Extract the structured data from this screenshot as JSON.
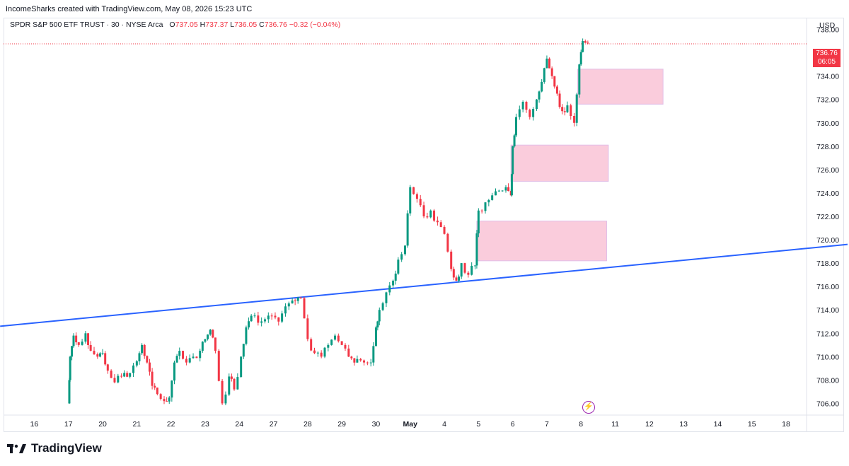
{
  "credit": "IncomeSharks created with TradingView.com, May 08, 2026 15:23 UTC",
  "legend": {
    "symbol": "SPDR S&P 500 ETF TRUST · 30 · NYSE Arca",
    "open_label": "O",
    "open": "737.05",
    "high_label": "H",
    "high": "737.37",
    "low_label": "L",
    "low": "736.05",
    "close_label": "C",
    "close": "736.76",
    "change": "−0.32 (−0.04%)"
  },
  "currency": "USD",
  "last_price": {
    "price": "736.76",
    "countdown": "06:05"
  },
  "brand": "TradingView",
  "colors": {
    "up": "#089981",
    "down": "#f23645",
    "trendline": "#2962ff",
    "zone": "#f8bbd0",
    "zone_border": "#e1bee7"
  },
  "chart_data": {
    "type": "candlestick",
    "interval": "30",
    "y_axis": {
      "min": 705,
      "max": 739,
      "ticks": [
        "706.00",
        "708.00",
        "710.00",
        "712.00",
        "714.00",
        "716.00",
        "718.00",
        "720.00",
        "722.00",
        "724.00",
        "726.00",
        "728.00",
        "730.00",
        "732.00",
        "734.00",
        "736.00",
        "738.00"
      ]
    },
    "x_axis": {
      "min": 15.2,
      "max": 18.6,
      "ticks": [
        {
          "x": 16,
          "label": "16"
        },
        {
          "x": 17,
          "label": "17"
        },
        {
          "x": 18,
          "label": "20"
        },
        {
          "x": 19,
          "label": "21"
        },
        {
          "x": 20,
          "label": "22"
        },
        {
          "x": 21,
          "label": "23"
        },
        {
          "x": 22,
          "label": "24"
        },
        {
          "x": 23,
          "label": "27"
        },
        {
          "x": 24,
          "label": "28"
        },
        {
          "x": 25,
          "label": "29"
        },
        {
          "x": 26,
          "label": "30"
        },
        {
          "x": 27,
          "label": "May",
          "bold": true
        },
        {
          "x": 28,
          "label": "4"
        },
        {
          "x": 29,
          "label": "5"
        },
        {
          "x": 30,
          "label": "6"
        },
        {
          "x": 31,
          "label": "7"
        },
        {
          "x": 32,
          "label": "8"
        },
        {
          "x": 33,
          "label": "11"
        },
        {
          "x": 34,
          "label": "12"
        },
        {
          "x": 35,
          "label": "13"
        },
        {
          "x": 36,
          "label": "14"
        },
        {
          "x": 37,
          "label": "15"
        },
        {
          "x": 38,
          "label": "18"
        }
      ]
    },
    "closes": [
      {
        "x": 17.0,
        "c": 706.0
      },
      {
        "x": 17.05,
        "c": 710.0
      },
      {
        "x": 17.15,
        "c": 711.8
      },
      {
        "x": 17.3,
        "c": 711.0
      },
      {
        "x": 17.5,
        "c": 712.0
      },
      {
        "x": 17.65,
        "c": 710.5
      },
      {
        "x": 17.85,
        "c": 710.0
      },
      {
        "x": 18.0,
        "c": 710.3
      },
      {
        "x": 18.15,
        "c": 708.8
      },
      {
        "x": 18.35,
        "c": 707.8
      },
      {
        "x": 18.55,
        "c": 708.3
      },
      {
        "x": 18.8,
        "c": 708.6
      },
      {
        "x": 19.0,
        "c": 709.6
      },
      {
        "x": 19.15,
        "c": 711.0
      },
      {
        "x": 19.3,
        "c": 709.5
      },
      {
        "x": 19.45,
        "c": 707.5
      },
      {
        "x": 19.6,
        "c": 706.8
      },
      {
        "x": 19.8,
        "c": 706.2
      },
      {
        "x": 19.95,
        "c": 706.5
      },
      {
        "x": 20.1,
        "c": 709.5
      },
      {
        "x": 20.25,
        "c": 710.5
      },
      {
        "x": 20.45,
        "c": 709.5
      },
      {
        "x": 20.65,
        "c": 710.0
      },
      {
        "x": 20.85,
        "c": 710.5
      },
      {
        "x": 21.0,
        "c": 711.5
      },
      {
        "x": 21.15,
        "c": 712.3
      },
      {
        "x": 21.3,
        "c": 710.5
      },
      {
        "x": 21.5,
        "c": 706.0
      },
      {
        "x": 21.7,
        "c": 708.3
      },
      {
        "x": 21.85,
        "c": 707.2
      },
      {
        "x": 22.05,
        "c": 710.0
      },
      {
        "x": 22.2,
        "c": 712.5
      },
      {
        "x": 22.35,
        "c": 713.5
      },
      {
        "x": 22.55,
        "c": 712.9
      },
      {
        "x": 22.75,
        "c": 713.2
      },
      {
        "x": 22.95,
        "c": 713.5
      },
      {
        "x": 23.15,
        "c": 713.0
      },
      {
        "x": 23.35,
        "c": 714.3
      },
      {
        "x": 23.55,
        "c": 714.8
      },
      {
        "x": 23.8,
        "c": 715.0
      },
      {
        "x": 24.0,
        "c": 711.5
      },
      {
        "x": 24.2,
        "c": 710.3
      },
      {
        "x": 24.4,
        "c": 710.0
      },
      {
        "x": 24.6,
        "c": 711.0
      },
      {
        "x": 24.8,
        "c": 711.8
      },
      {
        "x": 25.0,
        "c": 711.0
      },
      {
        "x": 25.2,
        "c": 710.0
      },
      {
        "x": 25.45,
        "c": 709.8
      },
      {
        "x": 25.65,
        "c": 709.5
      },
      {
        "x": 25.85,
        "c": 709.5
      },
      {
        "x": 26.0,
        "c": 712.5
      },
      {
        "x": 26.1,
        "c": 714.0
      },
      {
        "x": 26.3,
        "c": 715.5
      },
      {
        "x": 26.5,
        "c": 716.5
      },
      {
        "x": 26.65,
        "c": 718.3
      },
      {
        "x": 26.85,
        "c": 719.5
      },
      {
        "x": 27.0,
        "c": 724.5
      },
      {
        "x": 27.2,
        "c": 723.5
      },
      {
        "x": 27.4,
        "c": 722.0
      },
      {
        "x": 27.6,
        "c": 722.5
      },
      {
        "x": 27.8,
        "c": 721.5
      },
      {
        "x": 28.0,
        "c": 720.5
      },
      {
        "x": 28.2,
        "c": 717.5
      },
      {
        "x": 28.35,
        "c": 716.5
      },
      {
        "x": 28.5,
        "c": 718.0
      },
      {
        "x": 28.7,
        "c": 717.0
      },
      {
        "x": 28.9,
        "c": 717.8
      },
      {
        "x": 29.0,
        "c": 722.5
      },
      {
        "x": 29.2,
        "c": 723.2
      },
      {
        "x": 29.4,
        "c": 723.8
      },
      {
        "x": 29.6,
        "c": 724.2
      },
      {
        "x": 29.8,
        "c": 724.5
      },
      {
        "x": 29.95,
        "c": 723.8
      },
      {
        "x": 30.0,
        "c": 728.0
      },
      {
        "x": 30.1,
        "c": 730.5
      },
      {
        "x": 30.3,
        "c": 731.8
      },
      {
        "x": 30.5,
        "c": 730.5
      },
      {
        "x": 30.7,
        "c": 732.0
      },
      {
        "x": 30.85,
        "c": 733.5
      },
      {
        "x": 31.0,
        "c": 735.5
      },
      {
        "x": 31.15,
        "c": 734.0
      },
      {
        "x": 31.3,
        "c": 732.5
      },
      {
        "x": 31.45,
        "c": 731.0
      },
      {
        "x": 31.6,
        "c": 731.5
      },
      {
        "x": 31.8,
        "c": 730.0
      },
      {
        "x": 31.95,
        "c": 735.0
      },
      {
        "x": 32.05,
        "c": 737.0
      },
      {
        "x": 32.2,
        "c": 736.8
      }
    ],
    "trendline": {
      "from": {
        "x": 15.0,
        "y": 712.6
      },
      "to": {
        "x": 39.8,
        "y": 719.6
      }
    },
    "zones": [
      {
        "x0": 31.9,
        "x1": 34.4,
        "y0": 731.6,
        "y1": 734.6
      },
      {
        "x0": 29.95,
        "x1": 32.8,
        "y0": 725.0,
        "y1": 728.1
      },
      {
        "x0": 28.95,
        "x1": 32.75,
        "y0": 718.2,
        "y1": 721.6
      }
    ],
    "last_price_line": 736.76
  }
}
